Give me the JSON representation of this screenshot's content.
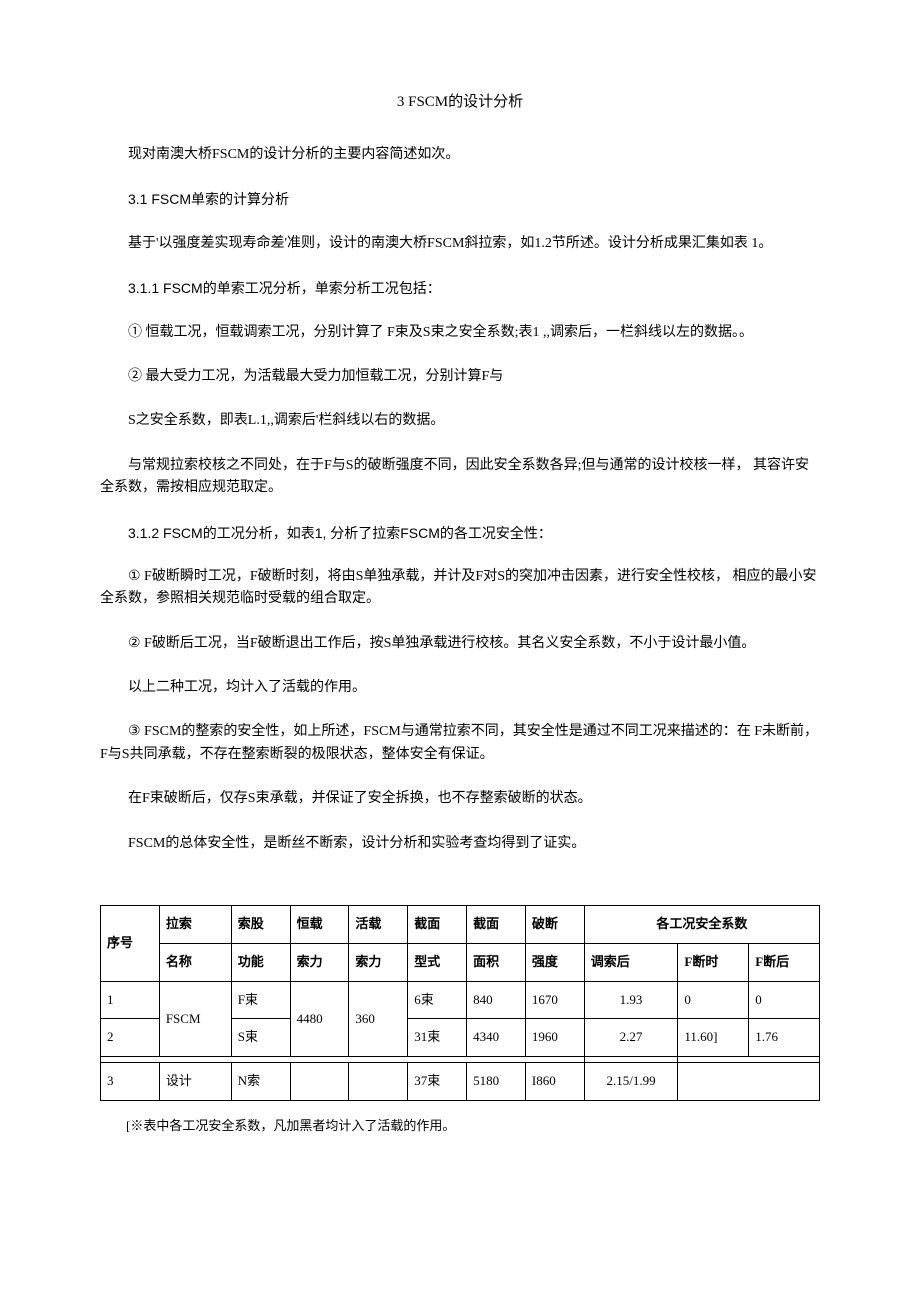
{
  "title": "3 FSCM的设计分析",
  "paragraphs": {
    "p1": "现对南澳大桥FSCM的设计分析的主要内容简述如次。",
    "s31": "3.1    FSCM单索的计算分析",
    "p2": "基于'以强度差实现寿命差'准则，设计的南澳大桥FSCM斜拉索，如1.2节所述。设计分析成果汇集如表 1。",
    "s311": "3.1.1 FSCM的单索工况分析，单索分析工况包括：",
    "p3": "①  恒载工况，恒载调索工况，分别计算了 F束及S束之安全系数;表1 ,,调索后，一栏斜线以左的数据。。",
    "p4": "②  最大受力工况，为活载最大受力加恒载工况，分别计算F与",
    "p5": "S之安全系数，即表L.1,,调索后'栏斜线以右的数据。",
    "p6": "与常规拉索校核之不同处，在于F与S的破断强度不同，因此安全系数各异;但与通常的设计校核一样，  其容许安全系数，需按相应规范取定。",
    "s312": "3.1.2    FSCM的工况分析，如表1, 分析了拉索FSCM的各工况安全性：",
    "p7": "①  F破断瞬时工况，F破断时刻，将由S单独承载，并计及F对S的突加冲击因素，进行安全性校核，  相应的最小安全系数，参照相关规范临时受载的组合取定。",
    "p8": "②  F破断后工况，当F破断退出工作后，按S单独承载进行校核。其名义安全系数，不小于设计最小值。",
    "p9": "以上二种工况，均计入了活载的作用。",
    "p10": "③  FSCM的整索的安全性，如上所述，FSCM与通常拉索不同，其安全性是通过不同工况来描述的：在 F未断前，F与S共同承载，不存在整索断裂的极限状态，整体安全有保证。",
    "p11": "在F束破断后，仅存S束承载，并保证了安全拆换，也不存整索破断的状态。",
    "p12": "FSCM的总体安全性，是断丝不断索，设计分析和实验考查均得到了证实。"
  },
  "table": {
    "headers": {
      "r1c1": "序号",
      "r1c2": "拉索",
      "r1c3": "索股",
      "r1c4": "恒载",
      "r1c5": "活载",
      "r1c6": "截面",
      "r1c7": "截面",
      "r1c8": "破断",
      "r1c9": "各工况安全系数",
      "r2c2": "名称",
      "r2c3": "功能",
      "r2c4": "索力",
      "r2c5": "索力",
      "r2c6": "型式",
      "r2c7": "面积",
      "r2c8": "强度",
      "r2c9a": "调索后",
      "r2c9b": "F断时",
      "r2c9c": "F断后"
    },
    "rows": [
      {
        "seq": "1",
        "name": "FSCM",
        "func": "F束",
        "constLoad": "4480",
        "liveLoad": "360",
        "sectionType": "6束",
        "sectionArea": "840",
        "breakStrength": "1670",
        "safetyAdjust": "1.93",
        "safetyBreakTime": "0",
        "safetyBreakAfter": "0"
      },
      {
        "seq": "2",
        "name": "",
        "func": "S束",
        "constLoad": "",
        "liveLoad": "",
        "sectionType": "31束",
        "sectionArea": "4340",
        "breakStrength": "1960",
        "safetyAdjust": "2.27",
        "safetyBreakTime": "11.60]",
        "safetyBreakAfter": "1.76"
      },
      {
        "seq": "3",
        "name": "设计",
        "func": "N索",
        "constLoad": "",
        "liveLoad": "",
        "sectionType": "37束",
        "sectionArea": "5180",
        "breakStrength": "I860",
        "safetyAdjust": "2.15/1.99",
        "safetyBreakTime": "",
        "safetyBreakAfter": ""
      }
    ]
  },
  "tableNote": "[※表中各工况安全系数，凡加黑者均计入了活载的作用。"
}
